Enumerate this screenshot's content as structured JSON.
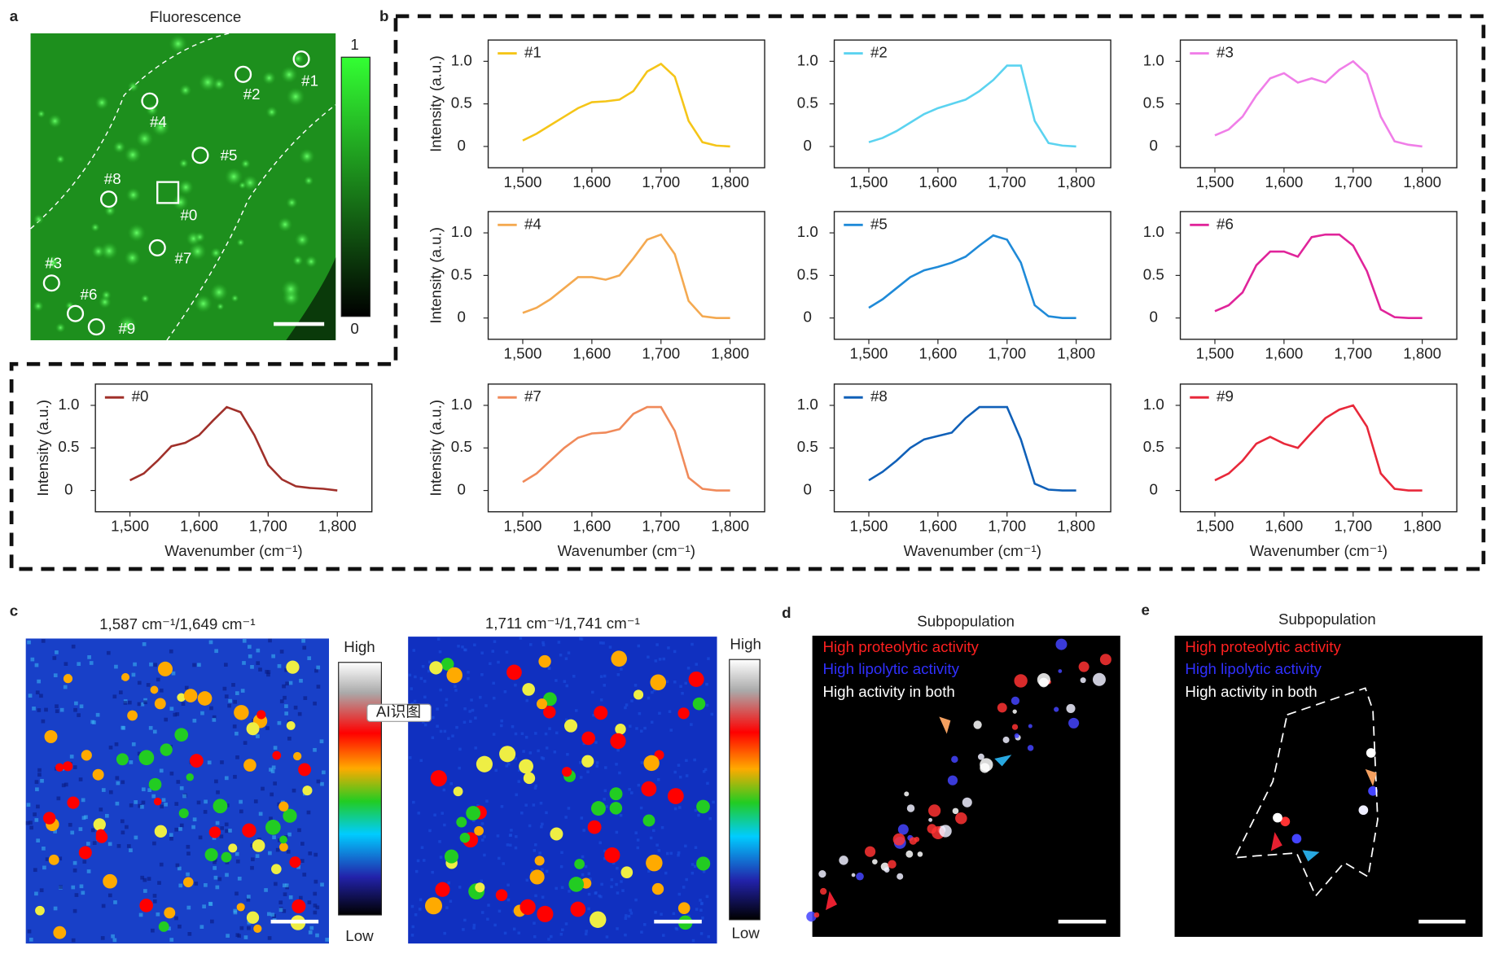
{
  "chart_data": [
    {
      "type": "line",
      "x": [
        1500,
        1520,
        1540,
        1560,
        1580,
        1600,
        1620,
        1640,
        1660,
        1680,
        1700,
        1720,
        1740,
        1760,
        1780,
        1800
      ],
      "series": [
        {
          "name": "#0",
          "color": "#a0302a",
          "values": [
            0.12,
            0.2,
            0.35,
            0.52,
            0.56,
            0.65,
            0.82,
            0.98,
            0.92,
            0.65,
            0.3,
            0.13,
            0.05,
            0.03,
            0.02,
            0
          ]
        }
      ],
      "xlim": [
        1450,
        1850
      ],
      "ylim": [
        -0.25,
        1.25
      ],
      "xticks": [
        {
          "value": 1500,
          "label": "1,500"
        },
        {
          "value": 1600,
          "label": "1,600"
        },
        {
          "value": 1700,
          "label": "1,700"
        },
        {
          "value": 1800,
          "label": "1,800"
        }
      ],
      "yticks": [
        0,
        0.5,
        {
          "value": 1,
          "label": "1.0"
        }
      ],
      "ylabel": "Intensity (a.u.)",
      "xlabel": "Wavenumber (cm⁻¹)"
    },
    {
      "type": "line",
      "x": [
        1500,
        1520,
        1540,
        1560,
        1580,
        1600,
        1620,
        1640,
        1660,
        1680,
        1700,
        1720,
        1740,
        1760,
        1780,
        1800
      ],
      "series": [
        {
          "name": "#1",
          "color": "#f5c518",
          "values": [
            0.07,
            0.15,
            0.25,
            0.35,
            0.45,
            0.52,
            0.53,
            0.55,
            0.65,
            0.88,
            0.97,
            0.82,
            0.3,
            0.05,
            0.01,
            0
          ]
        }
      ],
      "xlim": [
        1450,
        1850
      ],
      "ylim": [
        -0.25,
        1.25
      ],
      "xticks": [
        {
          "value": 1500,
          "label": "1,500"
        },
        {
          "value": 1600,
          "label": "1,600"
        },
        {
          "value": 1700,
          "label": "1,700"
        },
        {
          "value": 1800,
          "label": "1,800"
        }
      ],
      "yticks": [
        0,
        0.5,
        {
          "value": 1,
          "label": "1.0"
        }
      ],
      "ylabel": "Intensity (a.u.)"
    },
    {
      "type": "line",
      "x": [
        1500,
        1520,
        1540,
        1560,
        1580,
        1600,
        1620,
        1640,
        1660,
        1680,
        1700,
        1720,
        1740,
        1760,
        1780,
        1800
      ],
      "series": [
        {
          "name": "#2",
          "color": "#5bd3f0",
          "values": [
            0.05,
            0.1,
            0.18,
            0.28,
            0.38,
            0.45,
            0.5,
            0.55,
            0.65,
            0.78,
            0.95,
            0.95,
            0.3,
            0.04,
            0.01,
            0
          ]
        }
      ],
      "xlim": [
        1450,
        1850
      ],
      "ylim": [
        -0.25,
        1.25
      ],
      "xticks": [
        {
          "value": 1500,
          "label": "1,500"
        },
        {
          "value": 1600,
          "label": "1,600"
        },
        {
          "value": 1700,
          "label": "1,700"
        },
        {
          "value": 1800,
          "label": "1,800"
        }
      ],
      "yticks": [
        0,
        0.5,
        {
          "value": 1,
          "label": "1.0"
        }
      ]
    },
    {
      "type": "line",
      "x": [
        1500,
        1520,
        1540,
        1560,
        1580,
        1600,
        1620,
        1640,
        1660,
        1680,
        1700,
        1720,
        1740,
        1760,
        1780,
        1800
      ],
      "series": [
        {
          "name": "#3",
          "color": "#f07ee8",
          "values": [
            0.13,
            0.2,
            0.35,
            0.6,
            0.8,
            0.86,
            0.75,
            0.8,
            0.75,
            0.9,
            1.0,
            0.85,
            0.35,
            0.06,
            0.02,
            0
          ]
        }
      ],
      "xlim": [
        1450,
        1850
      ],
      "ylim": [
        -0.25,
        1.25
      ],
      "xticks": [
        {
          "value": 1500,
          "label": "1,500"
        },
        {
          "value": 1600,
          "label": "1,600"
        },
        {
          "value": 1700,
          "label": "1,700"
        },
        {
          "value": 1800,
          "label": "1,800"
        }
      ],
      "yticks": [
        0,
        0.5,
        {
          "value": 1,
          "label": "1.0"
        }
      ]
    },
    {
      "type": "line",
      "x": [
        1500,
        1520,
        1540,
        1560,
        1580,
        1600,
        1620,
        1640,
        1660,
        1680,
        1700,
        1720,
        1740,
        1760,
        1780,
        1800
      ],
      "series": [
        {
          "name": "#4",
          "color": "#f4a950",
          "values": [
            0.06,
            0.12,
            0.22,
            0.35,
            0.48,
            0.48,
            0.45,
            0.5,
            0.7,
            0.92,
            0.98,
            0.75,
            0.2,
            0.02,
            0,
            0
          ]
        }
      ],
      "xlim": [
        1450,
        1850
      ],
      "ylim": [
        -0.25,
        1.25
      ],
      "xticks": [
        {
          "value": 1500,
          "label": "1,500"
        },
        {
          "value": 1600,
          "label": "1,600"
        },
        {
          "value": 1700,
          "label": "1,700"
        },
        {
          "value": 1800,
          "label": "1,800"
        }
      ],
      "yticks": [
        0,
        0.5,
        {
          "value": 1,
          "label": "1.0"
        }
      ],
      "ylabel": "Intensity (a.u.)"
    },
    {
      "type": "line",
      "x": [
        1500,
        1520,
        1540,
        1560,
        1580,
        1600,
        1620,
        1640,
        1660,
        1680,
        1700,
        1720,
        1740,
        1760,
        1780,
        1800
      ],
      "series": [
        {
          "name": "#5",
          "color": "#1f8ad8",
          "values": [
            0.12,
            0.22,
            0.35,
            0.48,
            0.56,
            0.6,
            0.65,
            0.72,
            0.85,
            0.97,
            0.92,
            0.65,
            0.15,
            0.02,
            0,
            0
          ]
        }
      ],
      "xlim": [
        1450,
        1850
      ],
      "ylim": [
        -0.25,
        1.25
      ],
      "xticks": [
        {
          "value": 1500,
          "label": "1,500"
        },
        {
          "value": 1600,
          "label": "1,600"
        },
        {
          "value": 1700,
          "label": "1,700"
        },
        {
          "value": 1800,
          "label": "1,800"
        }
      ],
      "yticks": [
        0,
        0.5,
        {
          "value": 1,
          "label": "1.0"
        }
      ]
    },
    {
      "type": "line",
      "x": [
        1500,
        1520,
        1540,
        1560,
        1580,
        1600,
        1620,
        1640,
        1660,
        1680,
        1700,
        1720,
        1740,
        1760,
        1780,
        1800
      ],
      "series": [
        {
          "name": "#6",
          "color": "#e0249a",
          "values": [
            0.08,
            0.15,
            0.3,
            0.62,
            0.78,
            0.78,
            0.72,
            0.95,
            0.98,
            0.98,
            0.85,
            0.55,
            0.1,
            0.01,
            0,
            0
          ]
        }
      ],
      "xlim": [
        1450,
        1850
      ],
      "ylim": [
        -0.25,
        1.25
      ],
      "xticks": [
        {
          "value": 1500,
          "label": "1,500"
        },
        {
          "value": 1600,
          "label": "1,600"
        },
        {
          "value": 1700,
          "label": "1,700"
        },
        {
          "value": 1800,
          "label": "1,800"
        }
      ],
      "yticks": [
        0,
        0.5,
        {
          "value": 1,
          "label": "1.0"
        }
      ]
    },
    {
      "type": "line",
      "x": [
        1500,
        1520,
        1540,
        1560,
        1580,
        1600,
        1620,
        1640,
        1660,
        1680,
        1700,
        1720,
        1740,
        1760,
        1780,
        1800
      ],
      "series": [
        {
          "name": "#7",
          "color": "#f08a5a",
          "values": [
            0.1,
            0.2,
            0.35,
            0.5,
            0.62,
            0.67,
            0.68,
            0.72,
            0.9,
            0.98,
            0.98,
            0.7,
            0.15,
            0.02,
            0,
            0
          ]
        }
      ],
      "xlim": [
        1450,
        1850
      ],
      "ylim": [
        -0.25,
        1.25
      ],
      "xticks": [
        {
          "value": 1500,
          "label": "1,500"
        },
        {
          "value": 1600,
          "label": "1,600"
        },
        {
          "value": 1700,
          "label": "1,700"
        },
        {
          "value": 1800,
          "label": "1,800"
        }
      ],
      "yticks": [
        0,
        0.5,
        {
          "value": 1,
          "label": "1.0"
        }
      ],
      "ylabel": "Intensity (a.u.)",
      "xlabel": "Wavenumber (cm⁻¹)"
    },
    {
      "type": "line",
      "x": [
        1500,
        1520,
        1540,
        1560,
        1580,
        1600,
        1620,
        1640,
        1660,
        1680,
        1700,
        1720,
        1740,
        1760,
        1780,
        1800
      ],
      "series": [
        {
          "name": "#8",
          "color": "#1060b8",
          "values": [
            0.12,
            0.22,
            0.35,
            0.5,
            0.6,
            0.64,
            0.68,
            0.85,
            0.98,
            0.98,
            0.98,
            0.6,
            0.08,
            0.01,
            0,
            0
          ]
        }
      ],
      "xlim": [
        1450,
        1850
      ],
      "ylim": [
        -0.25,
        1.25
      ],
      "xticks": [
        {
          "value": 1500,
          "label": "1,500"
        },
        {
          "value": 1600,
          "label": "1,600"
        },
        {
          "value": 1700,
          "label": "1,700"
        },
        {
          "value": 1800,
          "label": "1,800"
        }
      ],
      "yticks": [
        0,
        0.5,
        {
          "value": 1,
          "label": "1.0"
        }
      ],
      "xlabel": "Wavenumber (cm⁻¹)"
    },
    {
      "type": "line",
      "x": [
        1500,
        1520,
        1540,
        1560,
        1580,
        1600,
        1620,
        1640,
        1660,
        1680,
        1700,
        1720,
        1740,
        1760,
        1780,
        1800
      ],
      "series": [
        {
          "name": "#9",
          "color": "#e8283a",
          "values": [
            0.12,
            0.2,
            0.35,
            0.55,
            0.63,
            0.55,
            0.5,
            0.68,
            0.85,
            0.95,
            1.0,
            0.75,
            0.2,
            0.02,
            0,
            0
          ]
        }
      ],
      "xlim": [
        1450,
        1850
      ],
      "ylim": [
        -0.25,
        1.25
      ],
      "xticks": [
        {
          "value": 1500,
          "label": "1,500"
        },
        {
          "value": 1600,
          "label": "1,600"
        },
        {
          "value": 1700,
          "label": "1,700"
        },
        {
          "value": 1800,
          "label": "1,800"
        }
      ],
      "yticks": [
        0,
        0.5,
        {
          "value": 1,
          "label": "1.0"
        }
      ],
      "xlabel": "Wavenumber (cm⁻¹)"
    }
  ],
  "panels": {
    "a": {
      "letter": "a",
      "title": "Fluorescence",
      "colorbar": {
        "max": "1",
        "min": "0"
      },
      "rois": [
        "#0",
        "#1",
        "#2",
        "#3",
        "#4",
        "#5",
        "#6",
        "#7",
        "#8",
        "#9"
      ]
    },
    "b": {
      "letter": "b"
    },
    "c": {
      "letter": "c",
      "left_title": "1,587 cm⁻¹/1,649 cm⁻¹",
      "right_title": "1,711 cm⁻¹/1,741 cm⁻¹",
      "left_colorbar": {
        "max": "High",
        "min": "Low"
      },
      "right_colorbar": {
        "max": "High",
        "min": "Low"
      }
    },
    "d": {
      "letter": "d",
      "title": "Subpopulation",
      "legend": [
        "High proteolytic activity",
        "High lipolytic activity",
        "High activity in both"
      ]
    },
    "e": {
      "letter": "e",
      "title": "Subpopulation",
      "legend": [
        "High proteolytic activity",
        "High lipolytic activity",
        "High activity in both"
      ]
    }
  },
  "overlay": {
    "button": "AI识图"
  }
}
